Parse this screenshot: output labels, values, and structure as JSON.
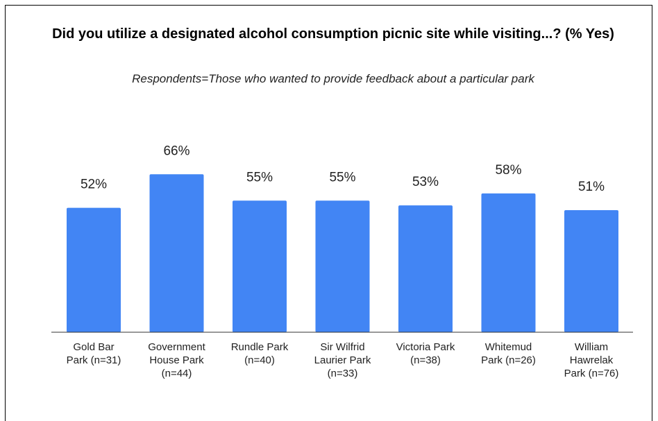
{
  "chart_data": {
    "type": "bar",
    "title": "Did you utilize a designated alcohol consumption picnic site while visiting...? (% Yes)",
    "subtitle": "Respondents=Those who wanted to provide feedback about a particular park",
    "categories": [
      [
        "Gold Bar",
        "Park (n=31)"
      ],
      [
        "Government",
        "House Park",
        "(n=44)"
      ],
      [
        "Rundle Park",
        "(n=40)"
      ],
      [
        "Sir Wilfrid",
        "Laurier Park",
        "(n=33)"
      ],
      [
        "Victoria Park",
        "(n=38)"
      ],
      [
        "Whitemud",
        "Park (n=26)"
      ],
      [
        "William",
        "Hawrelak",
        "Park (n=76)"
      ]
    ],
    "values": [
      52,
      66,
      55,
      55,
      53,
      58,
      51
    ],
    "value_labels": [
      "52%",
      "66%",
      "55%",
      "55%",
      "53%",
      "58%",
      "51%"
    ],
    "ylim": [
      0,
      100
    ],
    "color": "#4285f4",
    "grid": false,
    "legend": "none"
  }
}
